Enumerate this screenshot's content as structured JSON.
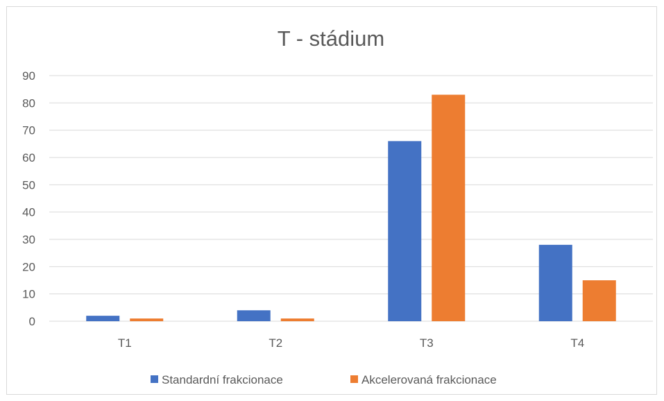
{
  "chart_data": {
    "type": "bar",
    "title": "T - stádium",
    "xlabel": "",
    "ylabel": "",
    "categories": [
      "T1",
      "T2",
      "T3",
      "T4"
    ],
    "ylim": [
      0,
      90
    ],
    "yticks": [
      0,
      10,
      20,
      30,
      40,
      50,
      60,
      70,
      80,
      90
    ],
    "grid": true,
    "legend_position": "bottom",
    "series": [
      {
        "name": "Standardní frakcionace",
        "values": [
          2,
          4,
          66,
          28
        ],
        "color": "#4472C4"
      },
      {
        "name": "Akcelerovaná frakcionace",
        "values": [
          1,
          1,
          83,
          15
        ],
        "color": "#ED7D31"
      }
    ]
  }
}
